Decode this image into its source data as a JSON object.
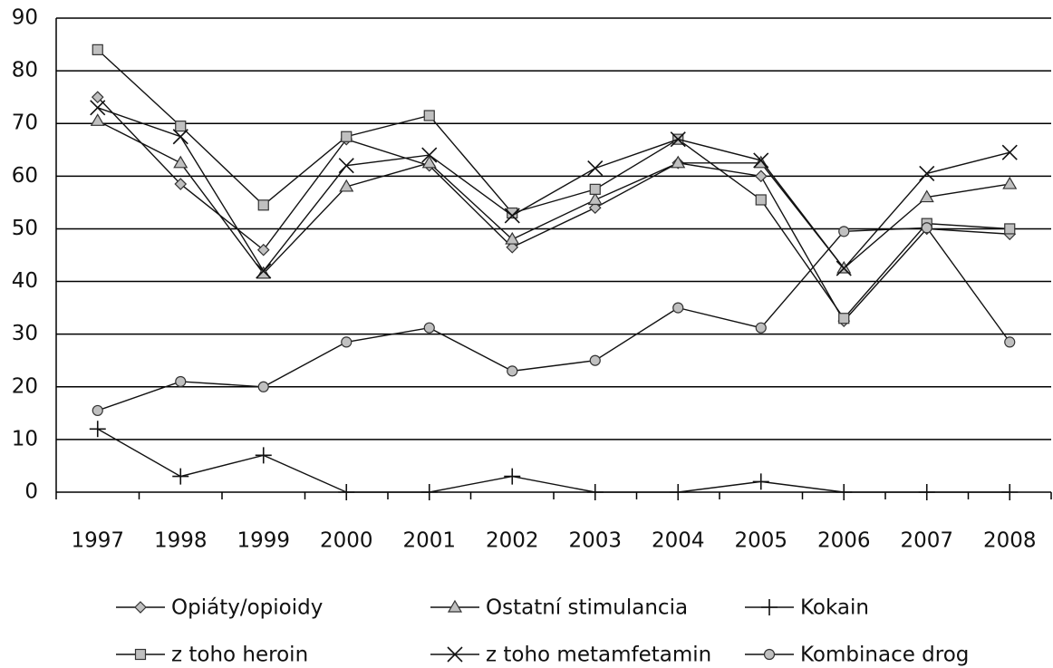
{
  "chart_data": {
    "type": "line",
    "categories": [
      "1997",
      "1998",
      "1999",
      "2000",
      "2001",
      "2002",
      "2003",
      "2004",
      "2005",
      "2006",
      "2007",
      "2008"
    ],
    "ylim": [
      0,
      90
    ],
    "yticks": [
      0,
      10,
      20,
      30,
      40,
      50,
      60,
      70,
      80,
      90
    ],
    "grid": true,
    "series": [
      {
        "name": "Opiáty/opioidy",
        "marker": "diamond",
        "color": "#c0c0c0",
        "values": [
          75,
          58.5,
          46,
          67,
          62,
          46.5,
          54,
          62.5,
          60,
          32.5,
          50,
          49
        ]
      },
      {
        "name": "Ostatní stimulancia",
        "marker": "triangle",
        "color": "#c0c0c0",
        "values": [
          70.5,
          62.5,
          41.5,
          58,
          62.5,
          48,
          55.5,
          62.5,
          62.5,
          42.5,
          56,
          58.5
        ]
      },
      {
        "name": "Kokain",
        "marker": "plus",
        "color": "#c0c0c0",
        "values": [
          12,
          3,
          7,
          0,
          0,
          3,
          0,
          0,
          2,
          0,
          0,
          0
        ]
      },
      {
        "name": "z toho heroin",
        "marker": "square",
        "color": "#c0c0c0",
        "values": [
          84,
          69.5,
          54.5,
          67.5,
          71.5,
          53,
          57.5,
          67,
          55.5,
          33,
          51,
          50
        ]
      },
      {
        "name": "z toho metamfetamin",
        "marker": "cross",
        "color": "#c0c0c0",
        "values": [
          73,
          67.5,
          42,
          62,
          64,
          52.5,
          61.5,
          67,
          63,
          42.5,
          60.5,
          64.5
        ]
      },
      {
        "name": "Kombinace drog",
        "marker": "circle",
        "color": "#c0c0c0",
        "values": [
          15.5,
          21,
          20,
          28.5,
          31.2,
          23,
          25,
          35,
          31.2,
          49.5,
          50.2,
          28.5
        ]
      }
    ]
  }
}
